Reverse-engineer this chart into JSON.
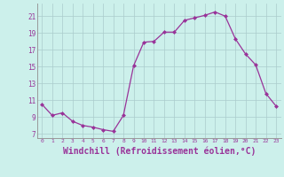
{
  "x": [
    0,
    1,
    2,
    3,
    4,
    5,
    6,
    7,
    8,
    9,
    10,
    11,
    12,
    13,
    14,
    15,
    16,
    17,
    18,
    19,
    20,
    21,
    22,
    23
  ],
  "y": [
    10.5,
    9.2,
    9.5,
    8.5,
    8.0,
    7.8,
    7.5,
    7.3,
    9.2,
    15.1,
    17.9,
    18.0,
    19.1,
    19.1,
    20.5,
    20.8,
    21.1,
    21.5,
    21.0,
    18.3,
    16.5,
    15.2,
    11.8,
    10.3
  ],
  "line_color": "#993399",
  "marker": "D",
  "marker_size": 2,
  "bg_color": "#ccf0eb",
  "grid_color": "#aacccc",
  "xlabel": "Windchill (Refroidissement éolien,°C)",
  "xlabel_fontsize": 7,
  "xtick_labels": [
    "0",
    "1",
    "2",
    "3",
    "4",
    "5",
    "6",
    "7",
    "8",
    "9",
    "10",
    "11",
    "12",
    "13",
    "14",
    "15",
    "16",
    "17",
    "18",
    "19",
    "20",
    "21",
    "22",
    "23"
  ],
  "ytick_labels": [
    "7",
    "9",
    "11",
    "13",
    "15",
    "17",
    "19",
    "21"
  ],
  "ytick_values": [
    7,
    9,
    11,
    13,
    15,
    17,
    19,
    21
  ],
  "ylim": [
    6.5,
    22.5
  ],
  "xlim": [
    -0.5,
    23.5
  ]
}
